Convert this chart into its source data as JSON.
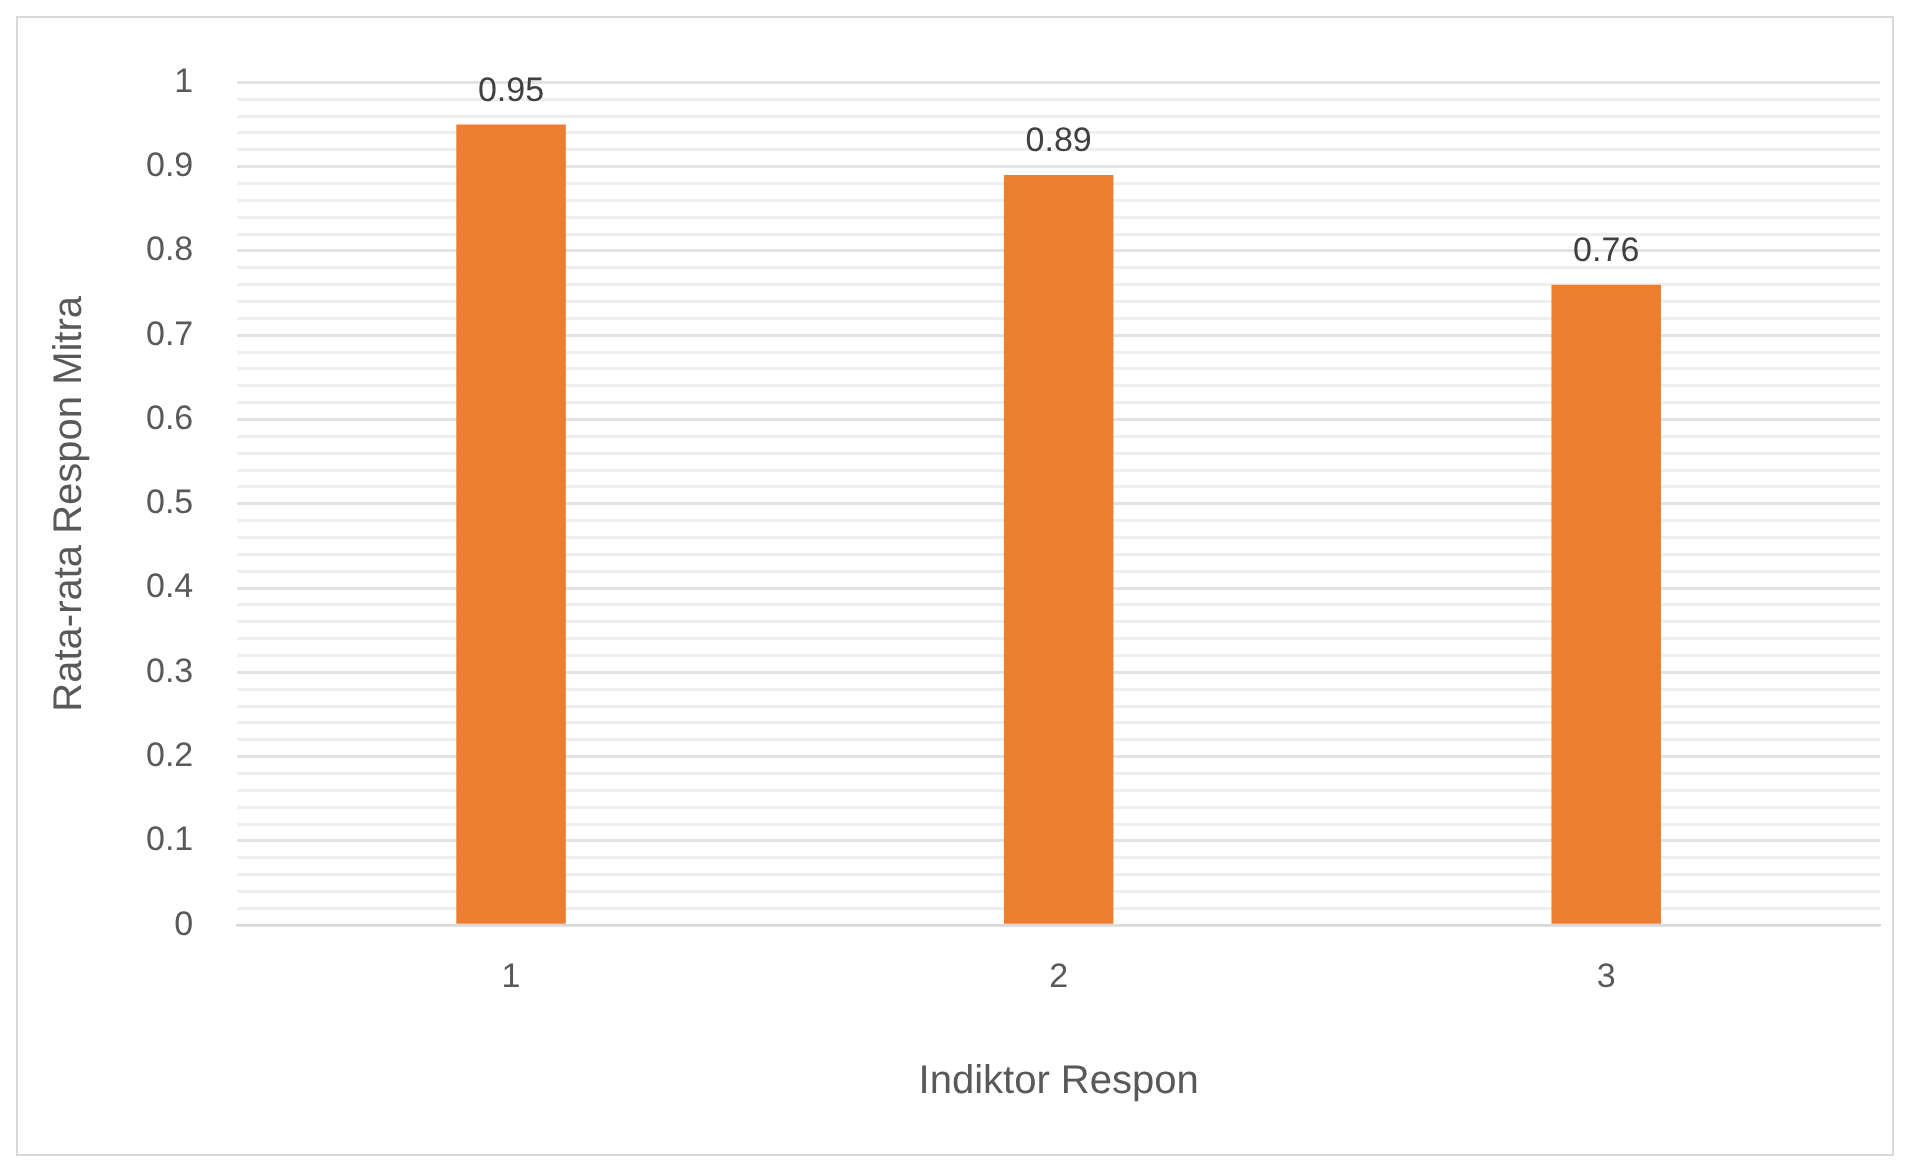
{
  "chart_data": {
    "type": "bar",
    "xlabel": "Indiktor Respon",
    "ylabel": "Rata-rata Respon Mitra",
    "categories": [
      "1",
      "2",
      "3"
    ],
    "values": [
      0.95,
      0.89,
      0.76
    ],
    "color": "#ed7d31",
    "ylim": [
      0,
      1
    ],
    "yticks": [
      0,
      {
        "value": 0.02,
        "label": null
      },
      {
        "value": 0.04,
        "label": null
      },
      {
        "value": 0.06,
        "label": null
      },
      {
        "value": 0.08,
        "label": null
      },
      0.1,
      {
        "value": 0.12,
        "label": null
      },
      {
        "value": 0.14,
        "label": null
      },
      {
        "value": 0.16,
        "label": null
      },
      {
        "value": 0.18,
        "label": null
      },
      0.2,
      {
        "value": 0.22,
        "label": null
      },
      {
        "value": 0.24,
        "label": null
      },
      {
        "value": 0.26,
        "label": null
      },
      {
        "value": 0.28,
        "label": null
      },
      0.3,
      {
        "value": 0.32,
        "label": null
      },
      {
        "value": 0.34,
        "label": null
      },
      {
        "value": 0.36,
        "label": null
      },
      {
        "value": 0.38,
        "label": null
      },
      0.4,
      {
        "value": 0.42,
        "label": null
      },
      {
        "value": 0.44,
        "label": null
      },
      {
        "value": 0.46,
        "label": null
      },
      {
        "value": 0.48,
        "label": null
      },
      0.5,
      {
        "value": 0.52,
        "label": null
      },
      {
        "value": 0.54,
        "label": null
      },
      {
        "value": 0.56,
        "label": null
      },
      {
        "value": 0.58,
        "label": null
      },
      0.6,
      {
        "value": 0.62,
        "label": null
      },
      {
        "value": 0.64,
        "label": null
      },
      {
        "value": 0.66,
        "label": null
      },
      {
        "value": 0.68,
        "label": null
      },
      0.7,
      {
        "value": 0.72,
        "label": null
      },
      {
        "value": 0.74,
        "label": null
      },
      {
        "value": 0.76,
        "label": null
      },
      {
        "value": 0.78,
        "label": null
      },
      0.8,
      {
        "value": 0.82,
        "label": null
      },
      {
        "value": 0.84,
        "label": null
      },
      {
        "value": 0.86,
        "label": null
      },
      {
        "value": 0.88,
        "label": null
      },
      0.9,
      {
        "value": 0.92,
        "label": null
      },
      {
        "value": 0.94,
        "label": null
      },
      {
        "value": 0.96,
        "label": null
      },
      {
        "value": 0.98,
        "label": null
      },
      1
    ],
    "grid": "y",
    "data_labels": true,
    "legend": false
  }
}
